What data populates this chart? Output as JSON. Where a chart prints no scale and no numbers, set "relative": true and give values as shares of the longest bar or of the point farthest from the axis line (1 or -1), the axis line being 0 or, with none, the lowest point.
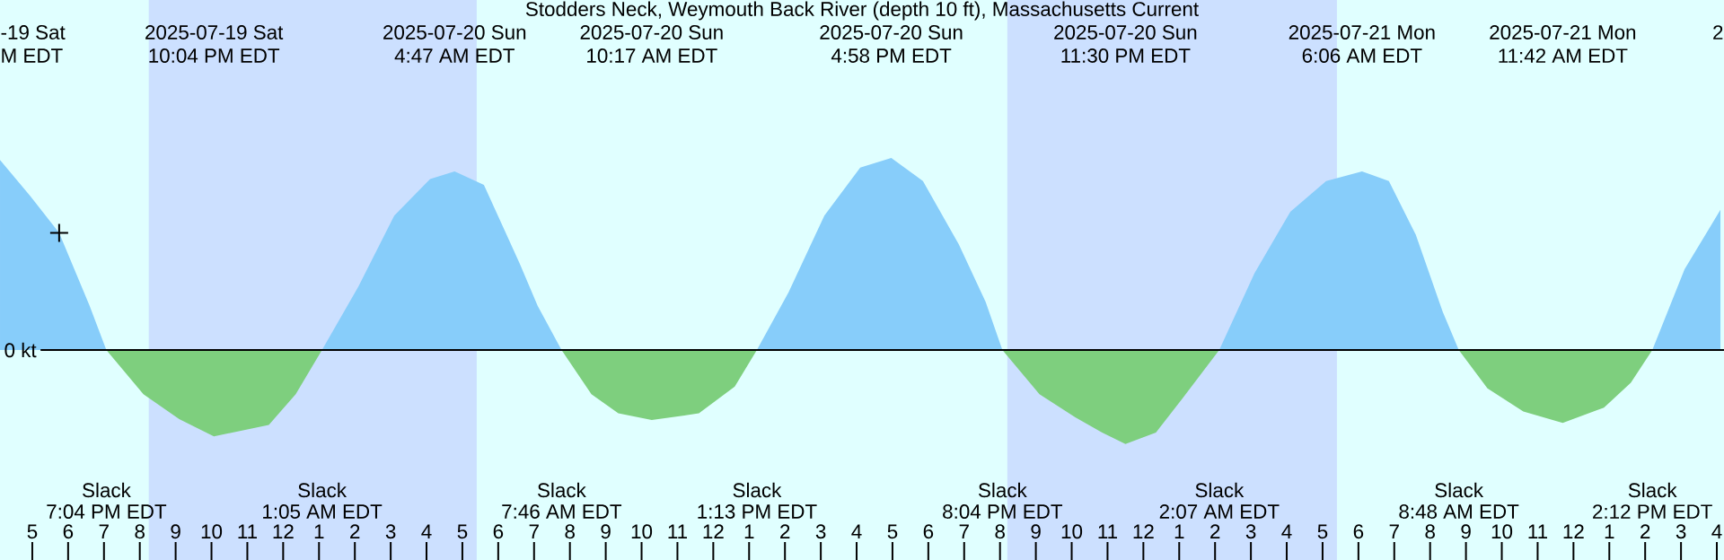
{
  "chart_data": {
    "type": "area",
    "title": "Stodders Neck, Weymouth Back River (depth 10 ft), Massachusetts Current",
    "relative": true,
    "x": [
      "2025-07-19T16:06",
      "2025-07-19T16:57",
      "2025-07-19T17:45",
      "2025-07-19T18:36",
      "2025-07-19T19:04",
      "2025-07-19T20:06",
      "2025-07-19T21:06",
      "2025-07-19T22:04",
      "2025-07-19T23:36",
      "2025-07-20T00:21",
      "2025-07-20T01:05",
      "2025-07-20T02:06",
      "2025-07-20T03:06",
      "2025-07-20T04:06",
      "2025-07-20T04:47",
      "2025-07-20T05:36",
      "2025-07-20T06:36",
      "2025-07-20T07:06",
      "2025-07-20T07:46",
      "2025-07-20T08:36",
      "2025-07-20T09:21",
      "2025-07-20T10:17",
      "2025-07-20T11:36",
      "2025-07-20T12:36",
      "2025-07-20T13:13",
      "2025-07-20T14:06",
      "2025-07-20T15:06",
      "2025-07-20T16:06",
      "2025-07-20T16:58",
      "2025-07-20T17:51",
      "2025-07-20T18:51",
      "2025-07-20T19:36",
      "2025-07-20T20:04",
      "2025-07-20T21:06",
      "2025-07-20T22:06",
      "2025-07-20T22:51",
      "2025-07-20T23:30",
      "2025-07-21T00:21",
      "2025-07-21T01:06",
      "2025-07-21T02:07",
      "2025-07-21T03:06",
      "2025-07-21T04:06",
      "2025-07-21T05:06",
      "2025-07-21T06:06",
      "2025-07-21T06:51",
      "2025-07-21T07:36",
      "2025-07-21T08:21",
      "2025-07-21T08:48",
      "2025-07-21T09:36",
      "2025-07-21T10:36",
      "2025-07-21T11:42",
      "2025-07-21T12:51",
      "2025-07-21T13:36",
      "2025-07-21T14:12",
      "2025-07-21T15:06",
      "2025-07-21T16:06"
    ],
    "xlim": [
      "2025-07-19T16:06",
      "2025-07-21T16:12"
    ],
    "xticks": [
      {
        "value": "2025-07-19T17:00",
        "label": "5"
      },
      {
        "value": "2025-07-19T18:00",
        "label": "6"
      },
      {
        "value": "2025-07-19T19:00",
        "label": "7"
      },
      {
        "value": "2025-07-19T20:00",
        "label": "8"
      },
      {
        "value": "2025-07-19T21:00",
        "label": "9"
      },
      {
        "value": "2025-07-19T22:00",
        "label": "10"
      },
      {
        "value": "2025-07-19T23:00",
        "label": "11"
      },
      {
        "value": "2025-07-20T00:00",
        "label": "12"
      },
      {
        "value": "2025-07-20T01:00",
        "label": "1"
      },
      {
        "value": "2025-07-20T02:00",
        "label": "2"
      },
      {
        "value": "2025-07-20T03:00",
        "label": "3"
      },
      {
        "value": "2025-07-20T04:00",
        "label": "4"
      },
      {
        "value": "2025-07-20T05:00",
        "label": "5"
      },
      {
        "value": "2025-07-20T06:00",
        "label": "6"
      },
      {
        "value": "2025-07-20T07:00",
        "label": "7"
      },
      {
        "value": "2025-07-20T08:00",
        "label": "8"
      },
      {
        "value": "2025-07-20T09:00",
        "label": "9"
      },
      {
        "value": "2025-07-20T10:00",
        "label": "10"
      },
      {
        "value": "2025-07-20T11:00",
        "label": "11"
      },
      {
        "value": "2025-07-20T12:00",
        "label": "12"
      },
      {
        "value": "2025-07-20T13:00",
        "label": "1"
      },
      {
        "value": "2025-07-20T14:00",
        "label": "2"
      },
      {
        "value": "2025-07-20T15:00",
        "label": "3"
      },
      {
        "value": "2025-07-20T16:00",
        "label": "4"
      },
      {
        "value": "2025-07-20T17:00",
        "label": "5"
      },
      {
        "value": "2025-07-20T18:00",
        "label": "6"
      },
      {
        "value": "2025-07-20T19:00",
        "label": "7"
      },
      {
        "value": "2025-07-20T20:00",
        "label": "8"
      },
      {
        "value": "2025-07-20T21:00",
        "label": "9"
      },
      {
        "value": "2025-07-20T22:00",
        "label": "10"
      },
      {
        "value": "2025-07-20T23:00",
        "label": "11"
      },
      {
        "value": "2025-07-21T00:00",
        "label": "12"
      },
      {
        "value": "2025-07-21T01:00",
        "label": "1"
      },
      {
        "value": "2025-07-21T02:00",
        "label": "2"
      },
      {
        "value": "2025-07-21T03:00",
        "label": "3"
      },
      {
        "value": "2025-07-21T04:00",
        "label": "4"
      },
      {
        "value": "2025-07-21T05:00",
        "label": "5"
      },
      {
        "value": "2025-07-21T06:00",
        "label": "6"
      },
      {
        "value": "2025-07-21T07:00",
        "label": "7"
      },
      {
        "value": "2025-07-21T08:00",
        "label": "8"
      },
      {
        "value": "2025-07-21T09:00",
        "label": "9"
      },
      {
        "value": "2025-07-21T10:00",
        "label": "10"
      },
      {
        "value": "2025-07-21T11:00",
        "label": "11"
      },
      {
        "value": "2025-07-21T12:00",
        "label": "12"
      },
      {
        "value": "2025-07-21T13:00",
        "label": "1"
      },
      {
        "value": "2025-07-21T14:00",
        "label": "2"
      },
      {
        "value": "2025-07-21T15:00",
        "label": "3"
      },
      {
        "value": "2025-07-21T16:00",
        "label": "4"
      }
    ],
    "series": [
      {
        "color": "#87cdfa",
        "values": [
          0.99,
          0.8,
          0.61,
          0.23,
          0,
          null,
          null,
          null,
          null,
          null,
          0,
          0.33,
          0.7,
          0.89,
          0.93,
          0.86,
          0.45,
          0.23,
          0,
          null,
          null,
          null,
          null,
          null,
          0,
          0.3,
          0.7,
          0.95,
          1.0,
          0.88,
          0.55,
          0.25,
          0,
          null,
          null,
          null,
          null,
          null,
          null,
          0,
          0.4,
          0.72,
          0.88,
          0.93,
          0.88,
          0.6,
          0.2,
          0,
          null,
          null,
          null,
          null,
          null,
          0,
          0.42,
          0.73
        ]
      },
      {
        "color": "#7ecf7e",
        "values": [
          null,
          null,
          null,
          null,
          0,
          -0.23,
          -0.36,
          -0.45,
          -0.39,
          -0.23,
          0,
          null,
          null,
          null,
          null,
          null,
          null,
          null,
          0,
          -0.23,
          -0.33,
          -0.365,
          -0.33,
          -0.19,
          0,
          null,
          null,
          null,
          null,
          null,
          null,
          null,
          0,
          -0.23,
          -0.35,
          -0.43,
          -0.49,
          -0.43,
          -0.25,
          0,
          null,
          null,
          null,
          null,
          null,
          null,
          null,
          0,
          -0.2,
          -0.32,
          -0.38,
          -0.3,
          -0.17,
          0,
          null,
          null
        ]
      },
      {
        "type": "scatter",
        "marker": "cross",
        "color": "#000000",
        "x": [
          "2025-07-19T17:45"
        ],
        "values": [
          0.61
        ]
      }
    ],
    "bands": [
      {
        "axis": "x",
        "from": "2025-07-19T20:15",
        "to": "2025-07-20T05:24",
        "color": "#cce0ff"
      },
      {
        "axis": "x",
        "from": "2025-07-20T20:12",
        "to": "2025-07-21T05:24",
        "color": "#cce0ff"
      }
    ],
    "ref_lines": [
      {
        "axis": "y",
        "value": 0,
        "label": "0 kt",
        "color": "#000000"
      }
    ],
    "annotations": [
      "2025-07-19 Sat",
      "10:04 PM EDT",
      "2025-07-20 Sun",
      "4:47 AM EDT",
      "2025-07-20 Sun",
      "10:17 AM EDT",
      "2025-07-20 Sun",
      "4:58 PM EDT",
      "2025-07-20 Sun",
      "11:30 PM EDT",
      "2025-07-21 Mon",
      "6:06 AM EDT",
      "2025-07-21 Mon",
      "11:42 AM EDT",
      "Slack",
      "7:04 PM EDT",
      "Slack",
      "1:05 AM EDT",
      "Slack",
      "7:46 AM EDT",
      "Slack",
      "1:13 PM EDT",
      "Slack",
      "8:04 PM EDT",
      "Slack",
      "2:07 AM EDT",
      "Slack",
      "8:48 AM EDT",
      "Slack",
      "2:12 PM EDT",
      "-19 Sat",
      "M EDT",
      "2"
    ]
  }
}
